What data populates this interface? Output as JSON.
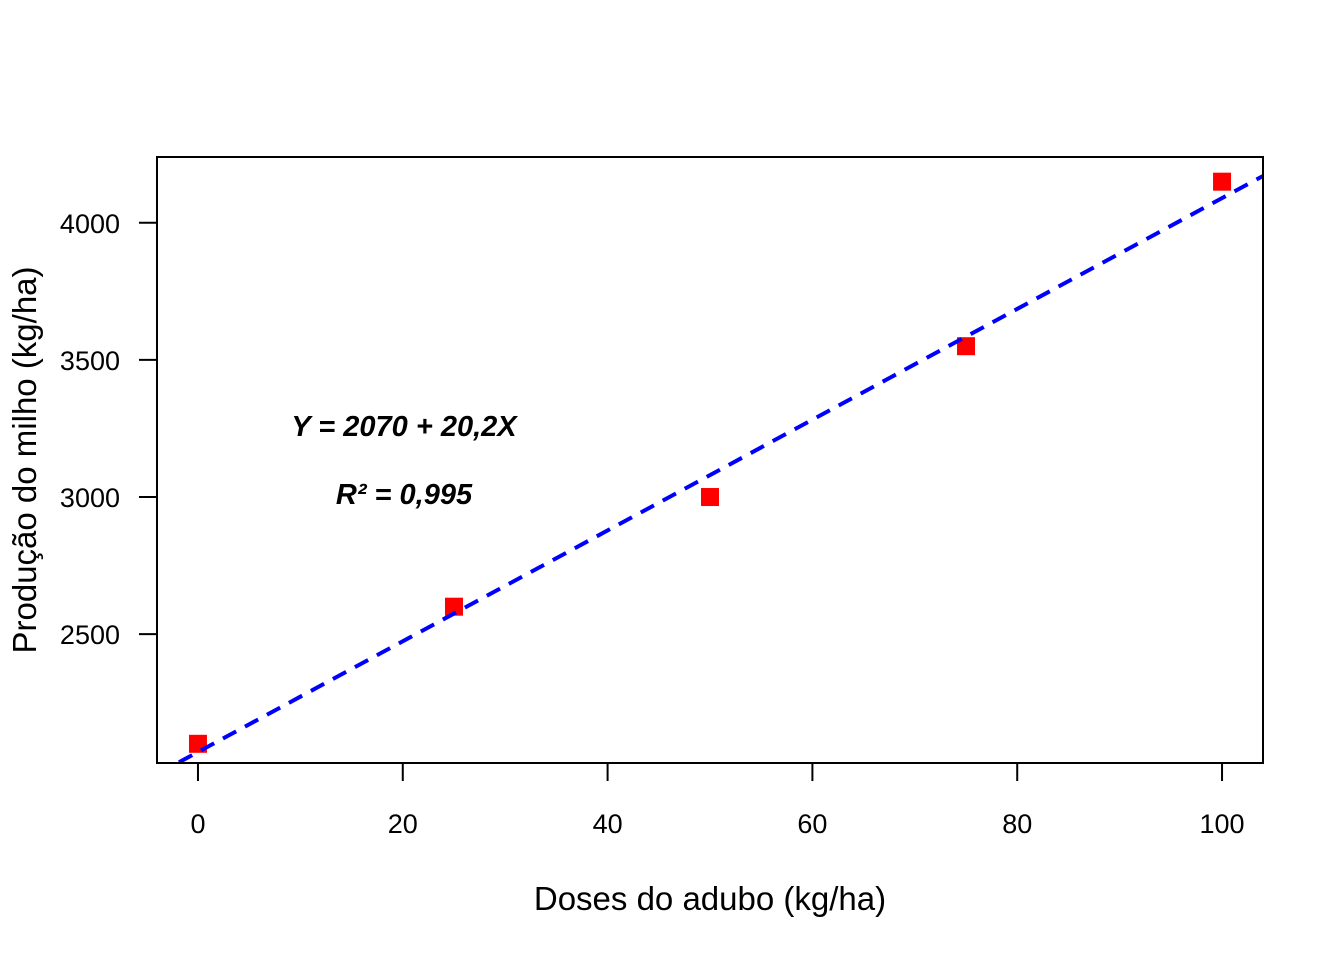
{
  "chart_data": {
    "type": "scatter",
    "title": "",
    "xlabel": "Doses do adubo (kg/ha)",
    "ylabel": "Produção do milho (kg/ha)",
    "xlim": [
      -4,
      104
    ],
    "ylim": [
      2030,
      4240
    ],
    "x_ticks": [
      0,
      20,
      40,
      60,
      80,
      100
    ],
    "x_tick_labels": [
      "0",
      "20",
      "40",
      "60",
      "80",
      "100"
    ],
    "y_ticks": [
      2500,
      3000,
      3500,
      4000
    ],
    "y_tick_labels": [
      "2500",
      "3000",
      "3500",
      "4000"
    ],
    "grid": false,
    "series": [
      {
        "type": "scatter",
        "marker": "square",
        "color": "#ff0000",
        "x": [
          0,
          25,
          50,
          75,
          100
        ],
        "y": [
          2100,
          2600,
          3000,
          3550,
          4150
        ]
      }
    ],
    "fit_line": {
      "intercept": 2070,
      "slope": 20.2,
      "style": "dashed",
      "color": "#0000ff"
    },
    "annotations": [
      {
        "text": "Y = 2070 + 20,2X"
      },
      {
        "text": "R² = 0,995"
      }
    ]
  }
}
